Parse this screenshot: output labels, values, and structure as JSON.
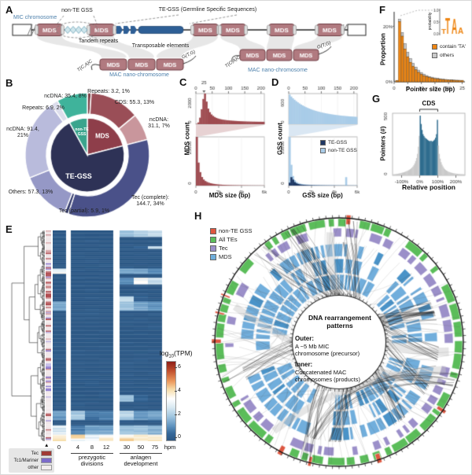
{
  "letters": {
    "A": "A",
    "B": "B",
    "C": "C",
    "D": "D",
    "E": "E",
    "F": "F",
    "G": "G",
    "H": "H"
  },
  "panelA": {
    "mic_chromosome": "MIC chromosome",
    "non_te_gss": "non-TE GSS",
    "te_gss": "TE-GSS (Germline Specific Sequences)",
    "tandem_repeats": "Tandem repeats",
    "transposable_elements": "Transposable elements",
    "mds": "MDS",
    "mac_left": "MAC nano-chromosome",
    "mac_right": "MAC nano-chromosome",
    "telomere_left": "T(C,A)C",
    "telomere_right": "G(T,G)",
    "colors": {
      "mds_fill": "#B17A80",
      "mds_border": "#6E3A41",
      "te_blue": "#2E5F96",
      "repeat_teal": "#CFE6EC",
      "repeat_edge": "#68A0B4",
      "ribbon": "#E4E4E4",
      "label_blue": "#4E81AC"
    }
  },
  "chart_data": [
    {
      "id": "B",
      "type": "pie",
      "inner": [
        {
          "label": "MDS",
          "pct": 21,
          "color": "#8E3E4A"
        },
        {
          "label": "TE-GSS",
          "pct": 71,
          "color": "#2E3256"
        },
        {
          "label": "non-TE\nGSS",
          "pct": 8,
          "color": "#3AA48D"
        }
      ],
      "outer": [
        {
          "text": "Repeats: 3.2, 1%",
          "pct": 1,
          "color": "#7E3D45"
        },
        {
          "text": "CDS: 55.3, 13%",
          "pct": 13,
          "color": "#9A4E57"
        },
        {
          "text": "ncDNA:\n31.1, 7%",
          "pct": 7,
          "color": "#C9969C"
        },
        {
          "text": "Tec (complete):\n144.7, 34%",
          "pct": 34,
          "color": "#4A5189"
        },
        {
          "text": "Tec (partial): 5.9, 1%",
          "pct": 1,
          "color": "#353C6E"
        },
        {
          "text": "Others: 57.3, 13%",
          "pct": 13,
          "color": "#9598C6"
        },
        {
          "text": "ncDNA: 91.4,\n21%",
          "pct": 21,
          "color": "#B9BBDC"
        },
        {
          "text": "Repeats: 6.9, 2%",
          "pct": 2,
          "color": "#DCDDEC"
        },
        {
          "text": "ncDNA: 35.4, 8%",
          "pct": 8,
          "color": "#3FB39B"
        }
      ]
    },
    {
      "id": "C",
      "type": "histogram-pair",
      "xlabel": "MDS size (bp)",
      "ylabel": "MDS count",
      "color": "#9E4B50",
      "top": {
        "ymax": 2000,
        "ytick_top": "2000",
        "ytick_bottom": "0",
        "xticks": [
          0,
          50,
          100,
          150,
          200
        ],
        "xmax": 210,
        "special_tick": "25",
        "values": [
          30,
          120,
          430,
          980,
          1650,
          2000,
          1480,
          1020,
          790,
          640,
          545,
          470,
          415,
          375,
          345,
          320,
          300,
          285,
          270,
          258,
          248,
          238,
          230,
          222,
          215,
          208,
          202,
          197,
          192,
          187,
          183,
          179,
          176,
          173,
          170,
          168,
          166,
          164,
          162,
          161,
          160,
          159
        ]
      },
      "bottom": {
        "ymax": 25000,
        "ytick_top": "25000",
        "ytick_bottom": "0",
        "xtick_labels": [
          "0",
          "2k",
          "4k",
          "6k"
        ],
        "values": [
          25000,
          11800,
          6900,
          4400,
          3100,
          2350,
          1850,
          1500,
          1230,
          1030,
          870,
          745,
          640,
          555,
          485,
          425,
          375,
          335,
          300,
          270,
          243,
          220,
          200,
          183,
          168,
          155,
          143,
          132,
          122,
          113,
          105,
          98,
          92,
          86,
          81,
          76,
          72,
          68,
          64,
          61
        ]
      }
    },
    {
      "id": "D",
      "type": "histogram-pair",
      "xlabel": "GSS size (bp)",
      "ylabel": "GSS count",
      "legend": [
        "TE-GSS",
        "non-TE GSS"
      ],
      "colors": {
        "light": "#A9CCE8",
        "dark": "#1F3864"
      },
      "top": {
        "ymax": 620,
        "ytick_top": "600",
        "ytick_bottom": "0",
        "xticks": [
          0,
          50,
          100,
          150,
          200
        ],
        "xmax": 210,
        "values": [
          600,
          560,
          525,
          495,
          468,
          443,
          420,
          399,
          380,
          362,
          346,
          331,
          317,
          304,
          292,
          281,
          271,
          261,
          252,
          244,
          236,
          229,
          222,
          216,
          210,
          204,
          199,
          194,
          189,
          185,
          181,
          177,
          173,
          170,
          167,
          164,
          161,
          158,
          156,
          154,
          152,
          150
        ]
      },
      "bottom": {
        "ymax": 15000,
        "ytick_top": "15000",
        "ytick_bottom": "0",
        "xtick_labels": [
          "0",
          "2k",
          "4k",
          "6k"
        ],
        "values": [
          15000,
          6400,
          2950,
          1700,
          1120,
          800,
          620,
          500,
          420,
          360,
          312,
          275,
          246,
          222,
          202,
          185,
          170,
          158,
          147,
          137,
          129,
          121,
          115,
          109,
          103,
          98,
          94,
          90,
          86,
          83,
          80,
          77,
          74,
          2600,
          71,
          69,
          66,
          64,
          62,
          60
        ],
        "values_dark": [
          900,
          2600,
          1850,
          1080,
          700,
          495,
          375,
          295,
          245,
          205,
          176,
          153,
          135,
          120,
          108,
          97,
          88,
          81,
          74,
          68,
          63,
          59,
          55,
          51,
          48,
          45,
          43,
          40,
          38,
          36,
          34,
          33,
          31,
          30,
          29,
          27,
          26,
          25,
          24,
          23
        ]
      }
    },
    {
      "id": "F",
      "type": "stacked-bar",
      "xlabel": "Pointer size (bp)",
      "ylabel": "Proportion",
      "ymax": 23.5,
      "xticks": [
        0,
        5,
        10,
        15,
        20,
        25
      ],
      "ytick_labels": [
        "0%",
        "20%"
      ],
      "legend": [
        {
          "label": "contain 'TA'",
          "color": "#EE8512"
        },
        {
          "label": "others",
          "color": "#C9C9C9"
        }
      ],
      "inset": {
        "ylabel": "probability",
        "yticks": [
          "1.0",
          "0.5",
          "0.0"
        ],
        "motif": "TA"
      },
      "orange": [
        0.4,
        21.6,
        16.4,
        11.8,
        9.0,
        7.0,
        5.5,
        4.3,
        3.4,
        2.7,
        2.2,
        1.8,
        1.5,
        1.3,
        1.1,
        0.95,
        0.85,
        0.75,
        0.65,
        0.6,
        0.55,
        0.5,
        0.45,
        0.42,
        0.4
      ],
      "gray": [
        0.1,
        0.9,
        1.3,
        1.9,
        1.6,
        1.3,
        1.1,
        0.95,
        0.8,
        0.65,
        0.55,
        0.45,
        0.4,
        0.35,
        0.3,
        0.27,
        0.24,
        0.21,
        0.19,
        0.17,
        0.16,
        0.15,
        0.14,
        0.13,
        0.12
      ]
    },
    {
      "id": "G",
      "type": "histogram",
      "xlabel": "Relative position",
      "ylabel": "Pointers (#)",
      "region_label": "CDS",
      "xtick_labels": [
        "-100%",
        "0%",
        "100%",
        "200%"
      ],
      "ytick_top": "500",
      "ytick_bottom": "0",
      "ymax": 520,
      "x_start": -150,
      "x_step": 5,
      "highlight": [
        0,
        100
      ],
      "colors": {
        "in": "#2F6D8F",
        "out": "#C9C9C9"
      },
      "values": [
        8,
        9,
        10,
        11,
        12,
        13,
        15,
        16,
        18,
        20,
        22,
        24,
        26,
        29,
        32,
        35,
        38,
        42,
        47,
        52,
        58,
        65,
        74,
        85,
        100,
        120,
        145,
        180,
        240,
        330,
        500,
        430,
        380,
        345,
        330,
        318,
        310,
        305,
        298,
        292,
        288,
        285,
        290,
        282,
        286,
        292,
        300,
        315,
        345,
        465,
        250,
        180,
        140,
        110,
        90,
        75,
        62,
        52,
        45,
        40,
        35,
        31,
        28,
        25,
        23,
        21,
        19,
        17,
        16,
        15,
        14,
        13,
        12,
        11,
        11,
        10,
        10,
        9,
        9,
        8
      ]
    },
    {
      "id": "E",
      "type": "heatmap",
      "rows": 160,
      "seed": 11,
      "columns": [
        "0",
        "4",
        "8",
        "12",
        "30",
        "50",
        "75"
      ],
      "unit": "hpm",
      "marker": "▲",
      "groups": [
        {
          "label": "prezygotic\ndivisions"
        },
        {
          "label": "anlagen\ndevelopment"
        }
      ],
      "colorbar": {
        "label_prefix": "log",
        "label_sub": "10",
        "label_suffix": "(TPM)",
        "ticks": [
          "6",
          "4",
          "2",
          "0"
        ]
      },
      "row_legend": [
        {
          "label": "Tec",
          "color": "#A03A35"
        },
        {
          "label": "Tc1/Mariner",
          "color": "#7C6BC9"
        },
        {
          "label": "other",
          "color": "#F2EDED"
        }
      ]
    },
    {
      "id": "H",
      "type": "circos",
      "seed": 5,
      "legend": [
        {
          "label": "non-TE GSS",
          "color": "#E0563F"
        },
        {
          "label": "All TEs",
          "color": "#5BBD5A"
        },
        {
          "label": "Tec",
          "color": "#9B8FC9"
        },
        {
          "label": "MDS",
          "color": "#6FAEDB"
        }
      ],
      "center": {
        "title": "DNA rearrangement\npatterns",
        "outer_head": "Outer:",
        "outer_desc": "A ~5 Mb MIC\nchromosome (precursor)",
        "inner_head": "Inner:",
        "inner_desc": "Concatenated MAC\nchromosomes (products)"
      }
    }
  ]
}
